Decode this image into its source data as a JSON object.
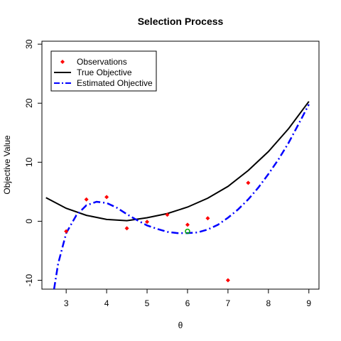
{
  "chart_data": {
    "type": "scatter",
    "title": "Selection Process",
    "xlabel": "θ",
    "ylabel": "Objective Value",
    "xlim": [
      2.4,
      9.25
    ],
    "ylim": [
      -11.5,
      30.5
    ],
    "x_ticks": [
      3,
      4,
      5,
      6,
      7,
      8,
      9
    ],
    "y_ticks": [
      -10,
      0,
      10,
      20,
      30
    ],
    "grid": false,
    "legend_position": "top-left",
    "legend": [
      {
        "label": "Observations",
        "style": "point",
        "color": "#ff0000"
      },
      {
        "label": "True Objective",
        "style": "solid",
        "color": "#000000"
      },
      {
        "label": "Estimated Ohjective",
        "style": "dashdot",
        "color": "#0000ff"
      }
    ],
    "series": [
      {
        "name": "Observations",
        "kind": "points",
        "color": "#ff0000",
        "points": [
          {
            "x": 3.0,
            "y": -1.7
          },
          {
            "x": 3.5,
            "y": 3.7
          },
          {
            "x": 4.0,
            "y": 4.1
          },
          {
            "x": 4.5,
            "y": -1.2
          },
          {
            "x": 5.0,
            "y": -0.1
          },
          {
            "x": 5.5,
            "y": 1.1
          },
          {
            "x": 6.0,
            "y": -0.6
          },
          {
            "x": 6.5,
            "y": 0.5
          },
          {
            "x": 7.0,
            "y": -10.0
          },
          {
            "x": 7.5,
            "y": 6.5
          }
        ]
      },
      {
        "name": "True Objective",
        "kind": "line",
        "color": "#000000",
        "x": [
          2.5,
          3.0,
          3.5,
          4.0,
          4.5,
          5.0,
          5.5,
          6.0,
          6.5,
          7.0,
          7.5,
          8.0,
          8.5,
          9.0
        ],
        "y": [
          4.0,
          2.2,
          1.0,
          0.3,
          0.1,
          0.6,
          1.3,
          2.4,
          3.9,
          5.9,
          8.6,
          11.8,
          15.7,
          20.3
        ]
      },
      {
        "name": "Estimated Ohjective",
        "kind": "line",
        "color": "#0000ff",
        "x": [
          2.7,
          2.8,
          3.0,
          3.25,
          3.5,
          3.75,
          4.0,
          4.25,
          4.5,
          4.75,
          5.0,
          5.25,
          5.5,
          5.75,
          6.0,
          6.25,
          6.5,
          6.75,
          7.0,
          7.25,
          7.5,
          7.75,
          8.0,
          8.25,
          8.5,
          8.75,
          9.0
        ],
        "y": [
          -11.5,
          -7.2,
          -2.0,
          1.0,
          2.7,
          3.3,
          3.1,
          2.3,
          1.2,
          0.2,
          -0.7,
          -1.3,
          -1.8,
          -2.0,
          -2.0,
          -1.9,
          -1.4,
          -0.6,
          0.6,
          2.0,
          3.7,
          5.7,
          8.0,
          10.5,
          13.3,
          16.5,
          19.8
        ]
      },
      {
        "name": "",
        "kind": "selected-point",
        "color": "#00aa00",
        "points": [
          {
            "x": 6.0,
            "y": -1.7
          }
        ]
      }
    ]
  }
}
